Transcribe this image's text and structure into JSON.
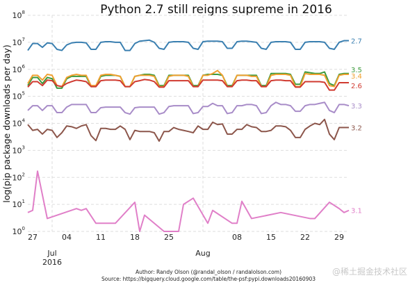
{
  "chart_data": {
    "type": "line",
    "title": "Python 2.7 still reigns supreme in 2016",
    "ylabel": "log(pip package downloads per day)",
    "xlabel": "",
    "yscale": "log",
    "ylim": [
      1,
      100000000
    ],
    "xlim": [
      "2016-06-26",
      "2016-08-31"
    ],
    "grid": true,
    "legend": "inline labels at right end of lines",
    "yticks": [
      {
        "base": "10",
        "exp": "0",
        "value": 1
      },
      {
        "base": "10",
        "exp": "1",
        "value": 10
      },
      {
        "base": "10",
        "exp": "2",
        "value": 100
      },
      {
        "base": "10",
        "exp": "3",
        "value": 1000
      },
      {
        "base": "10",
        "exp": "4",
        "value": 10000
      },
      {
        "base": "10",
        "exp": "5",
        "value": 100000
      },
      {
        "base": "10",
        "exp": "6",
        "value": 1000000
      },
      {
        "base": "10",
        "exp": "7",
        "value": 10000000
      },
      {
        "base": "10",
        "exp": "8",
        "value": 100000000
      }
    ],
    "xticks_minor": [
      {
        "label": "27",
        "date": "2016-06-27"
      },
      {
        "label": "04",
        "date": "2016-07-04"
      },
      {
        "label": "11",
        "date": "2016-07-11"
      },
      {
        "label": "18",
        "date": "2016-07-18"
      },
      {
        "label": "25",
        "date": "2016-07-25"
      },
      {
        "label": "08",
        "date": "2016-08-08"
      },
      {
        "label": "15",
        "date": "2016-08-15"
      },
      {
        "label": "22",
        "date": "2016-08-22"
      },
      {
        "label": "29",
        "date": "2016-08-29"
      }
    ],
    "xticks_major": [
      {
        "label": "Jul",
        "sublabel": "2016",
        "date": "2016-07-01"
      },
      {
        "label": "Aug",
        "sublabel": "",
        "date": "2016-08-01"
      }
    ],
    "x": [
      "2016-06-26",
      "2016-06-27",
      "2016-06-28",
      "2016-06-29",
      "2016-06-30",
      "2016-07-01",
      "2016-07-02",
      "2016-07-03",
      "2016-07-04",
      "2016-07-05",
      "2016-07-06",
      "2016-07-07",
      "2016-07-08",
      "2016-07-09",
      "2016-07-10",
      "2016-07-11",
      "2016-07-12",
      "2016-07-13",
      "2016-07-14",
      "2016-07-15",
      "2016-07-16",
      "2016-07-17",
      "2016-07-18",
      "2016-07-19",
      "2016-07-20",
      "2016-07-21",
      "2016-07-22",
      "2016-07-23",
      "2016-07-24",
      "2016-07-25",
      "2016-07-26",
      "2016-07-27",
      "2016-07-28",
      "2016-07-29",
      "2016-07-30",
      "2016-07-31",
      "2016-08-01",
      "2016-08-02",
      "2016-08-03",
      "2016-08-04",
      "2016-08-05",
      "2016-08-06",
      "2016-08-07",
      "2016-08-08",
      "2016-08-09",
      "2016-08-10",
      "2016-08-11",
      "2016-08-12",
      "2016-08-13",
      "2016-08-14",
      "2016-08-15",
      "2016-08-16",
      "2016-08-17",
      "2016-08-18",
      "2016-08-19",
      "2016-08-20",
      "2016-08-21",
      "2016-08-22",
      "2016-08-23",
      "2016-08-24",
      "2016-08-25",
      "2016-08-26",
      "2016-08-27",
      "2016-08-28",
      "2016-08-29",
      "2016-08-30",
      "2016-08-31"
    ],
    "series": [
      {
        "name": "2.7",
        "color": "#3a7fb0",
        "values": [
          5000000.0,
          9000000.0,
          9000000.0,
          6500000.0,
          9500000.0,
          9000000.0,
          5500000.0,
          5000000.0,
          8000000.0,
          9500000.0,
          10000000.0,
          10000000.0,
          9500000.0,
          5500000.0,
          5500000.0,
          10000000.0,
          10500000.0,
          10500000.0,
          10000000.0,
          10000000.0,
          5000000.0,
          5000000.0,
          9000000.0,
          11000000.0,
          11500000.0,
          12000000.0,
          10000000.0,
          6000000.0,
          5500000.0,
          10000000.0,
          10500000.0,
          10500000.0,
          10500000.0,
          10000000.0,
          6000000.0,
          5500000.0,
          10500000.0,
          11000000.0,
          11000000.0,
          11000000.0,
          10500000.0,
          6000000.0,
          6000000.0,
          10500000.0,
          11000000.0,
          11000000.0,
          10500000.0,
          10000000.0,
          6000000.0,
          5500000.0,
          10000000.0,
          10500000.0,
          10500000.0,
          10500000.0,
          10000000.0,
          5500000.0,
          5500000.0,
          10000000.0,
          10500000.0,
          10500000.0,
          10500000.0,
          10000000.0,
          6000000.0,
          5500000.0,
          10000000.0,
          11500000.0,
          11500000.0
        ]
      },
      {
        "name": "3.5",
        "color": "#3c9a3c",
        "values": [
          250000.0,
          500000.0,
          500000.0,
          300000.0,
          500000.0,
          450000.0,
          200000.0,
          200000.0,
          450000.0,
          550000.0,
          550000.0,
          550000.0,
          550000.0,
          230000.0,
          230000.0,
          550000.0,
          600000.0,
          600000.0,
          600000.0,
          550000.0,
          230000.0,
          230000.0,
          550000.0,
          600000.0,
          650000.0,
          650000.0,
          600000.0,
          250000.0,
          250000.0,
          600000.0,
          600000.0,
          600000.0,
          600000.0,
          600000.0,
          250000.0,
          250000.0,
          600000.0,
          650000.0,
          650000.0,
          650000.0,
          600000.0,
          250000.0,
          250000.0,
          600000.0,
          600000.0,
          600000.0,
          600000.0,
          600000.0,
          250000.0,
          250000.0,
          700000.0,
          700000.0,
          700000.0,
          700000.0,
          650000.0,
          280000.0,
          280000.0,
          800000.0,
          750000.0,
          700000.0,
          700000.0,
          800000.0,
          300000.0,
          250000.0,
          650000.0,
          700000.0,
          700000.0
        ]
      },
      {
        "name": "3.4",
        "color": "#f0a030",
        "values": [
          300000.0,
          600000.0,
          600000.0,
          400000.0,
          650000.0,
          600000.0,
          250000.0,
          230000.0,
          500000.0,
          600000.0,
          650000.0,
          600000.0,
          600000.0,
          250000.0,
          250000.0,
          600000.0,
          650000.0,
          650000.0,
          600000.0,
          550000.0,
          230000.0,
          230000.0,
          550000.0,
          600000.0,
          600000.0,
          600000.0,
          550000.0,
          230000.0,
          230000.0,
          550000.0,
          600000.0,
          600000.0,
          600000.0,
          550000.0,
          230000.0,
          230000.0,
          600000.0,
          600000.0,
          700000.0,
          900000.0,
          600000.0,
          230000.0,
          230000.0,
          600000.0,
          600000.0,
          600000.0,
          550000.0,
          550000.0,
          230000.0,
          230000.0,
          600000.0,
          650000.0,
          650000.0,
          650000.0,
          600000.0,
          230000.0,
          230000.0,
          700000.0,
          650000.0,
          650000.0,
          650000.0,
          600000.0,
          250000.0,
          230000.0,
          600000.0,
          650000.0,
          650000.0
        ]
      },
      {
        "name": "2.6",
        "color": "#d03a30",
        "values": [
          220000.0,
          350000.0,
          350000.0,
          250000.0,
          400000.0,
          380000.0,
          250000.0,
          230000.0,
          300000.0,
          350000.0,
          400000.0,
          380000.0,
          350000.0,
          230000.0,
          230000.0,
          380000.0,
          400000.0,
          400000.0,
          400000.0,
          380000.0,
          230000.0,
          230000.0,
          350000.0,
          380000.0,
          420000.0,
          400000.0,
          350000.0,
          220000.0,
          220000.0,
          380000.0,
          380000.0,
          380000.0,
          380000.0,
          380000.0,
          230000.0,
          230000.0,
          400000.0,
          400000.0,
          400000.0,
          400000.0,
          380000.0,
          230000.0,
          230000.0,
          380000.0,
          400000.0,
          400000.0,
          380000.0,
          380000.0,
          230000.0,
          230000.0,
          380000.0,
          400000.0,
          400000.0,
          380000.0,
          380000.0,
          220000.0,
          220000.0,
          350000.0,
          350000.0,
          350000.0,
          350000.0,
          330000.0,
          170000.0,
          170000.0,
          320000.0,
          320000.0,
          320000.0
        ]
      },
      {
        "name": "3.3",
        "color": "#a88cc8",
        "values": [
          30000.0,
          45000.0,
          45000.0,
          30000.0,
          45000.0,
          45000.0,
          25000.0,
          25000.0,
          40000.0,
          50000.0,
          50000.0,
          50000.0,
          50000.0,
          25000.0,
          25000.0,
          38000.0,
          40000.0,
          40000.0,
          40000.0,
          40000.0,
          25000.0,
          22000.0,
          38000.0,
          40000.0,
          40000.0,
          40000.0,
          40000.0,
          22000.0,
          25000.0,
          42000.0,
          45000.0,
          45000.0,
          45000.0,
          45000.0,
          23000.0,
          25000.0,
          42000.0,
          42000.0,
          55000.0,
          45000.0,
          45000.0,
          23000.0,
          25000.0,
          45000.0,
          45000.0,
          50000.0,
          50000.0,
          45000.0,
          23000.0,
          25000.0,
          45000.0,
          60000.0,
          50000.0,
          50000.0,
          45000.0,
          28000.0,
          28000.0,
          45000.0,
          50000.0,
          50000.0,
          55000.0,
          60000.0,
          30000.0,
          25000.0,
          50000.0,
          50000.0,
          45000.0
        ]
      },
      {
        "name": "3.2",
        "color": "#8c564b",
        "values": [
          9000.0,
          5500.0,
          6000.0,
          4000.0,
          6000.0,
          5500.0,
          3000.0,
          4500.0,
          8000.0,
          7500.0,
          6500.0,
          8000.0,
          9000.0,
          3500.0,
          2300.0,
          6500.0,
          6500.0,
          6000.0,
          6000.0,
          8000.0,
          6000.0,
          2500.0,
          5500.0,
          5000.0,
          5000.0,
          5000.0,
          4500.0,
          2200.0,
          5000.0,
          5000.0,
          7000.0,
          6000.0,
          5500.0,
          5000.0,
          4500.0,
          8000.0,
          6000.0,
          6000.0,
          11000.0,
          9000.0,
          9500.0,
          4000.0,
          4000.0,
          6000.0,
          6000.0,
          9000.0,
          7500.0,
          7000.0,
          5000.0,
          5000.0,
          5500.0,
          8000.0,
          8000.0,
          7500.0,
          5500.0,
          3000.0,
          3000.0,
          6000.0,
          8000.0,
          10000.0,
          9000.0,
          14000.0,
          4000.0,
          2500.0,
          7000.0,
          7000.0,
          7000.0
        ]
      },
      {
        "name": "3.1",
        "color": "#e07fc8",
        "points": [
          [
            "2016-06-26",
            5
          ],
          [
            "2016-06-27",
            6
          ],
          [
            "2016-06-28",
            170
          ],
          [
            "2016-06-30",
            3
          ],
          [
            "2016-07-06",
            7
          ],
          [
            "2016-07-07",
            6
          ],
          [
            "2016-07-08",
            7
          ],
          [
            "2016-07-10",
            2
          ],
          [
            "2016-07-14",
            2
          ],
          [
            "2016-07-18",
            12
          ],
          [
            "2016-07-19",
            1
          ],
          [
            "2016-07-20",
            4
          ],
          [
            "2016-07-24",
            1
          ],
          [
            "2016-07-27",
            1
          ],
          [
            "2016-07-28",
            10
          ],
          [
            "2016-07-30",
            17
          ],
          [
            "2016-08-02",
            2
          ],
          [
            "2016-08-03",
            6
          ],
          [
            "2016-08-07",
            2
          ],
          [
            "2016-08-08",
            2
          ],
          [
            "2016-08-09",
            13
          ],
          [
            "2016-08-11",
            3
          ],
          [
            "2016-08-17",
            5
          ],
          [
            "2016-08-23",
            3
          ],
          [
            "2016-08-24",
            3
          ],
          [
            "2016-08-27",
            12
          ],
          [
            "2016-08-29",
            7
          ],
          [
            "2016-08-30",
            5
          ],
          [
            "2016-08-31",
            6
          ]
        ]
      }
    ]
  },
  "footer": {
    "author": "Author: Randy Olson (@randal_olson / randalolson.com)",
    "source": "Source: https://bigquery.cloud.google.com/table/the-psf:pypi.downloads20160903"
  },
  "watermark": "@稀土掘金技术社区"
}
